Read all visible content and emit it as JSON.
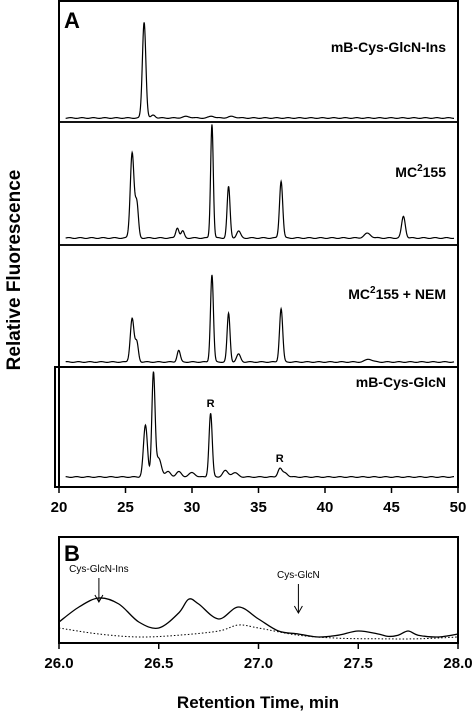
{
  "figure": {
    "y_axis_label": "Relative Fluorescence",
    "x_axis_label": "Retention Time, min"
  },
  "chart_data": [
    {
      "type": "line",
      "panel_label": "A",
      "xlim": [
        20,
        50
      ],
      "xticks": [
        20,
        25,
        30,
        35,
        40,
        45,
        50
      ],
      "tick_labels": [
        "20",
        "25",
        "30",
        "35",
        "40",
        "45",
        "50"
      ],
      "traces": [
        {
          "title_main": "mB-Cys-GlcN-Ins",
          "title_sup": "",
          "title_tail": "",
          "peaks": [
            [
              26.4,
              1.0,
              0.13
            ],
            [
              27.1,
              0.03,
              0.15
            ],
            [
              29.6,
              0.015,
              0.3
            ],
            [
              31.5,
              0.02,
              0.2
            ],
            [
              33.0,
              0.015,
              0.3
            ]
          ],
          "markers": []
        },
        {
          "title_main": "MC",
          "title_sup": "2",
          "title_tail": "155",
          "peaks": [
            [
              25.5,
              0.75,
              0.14
            ],
            [
              25.85,
              0.3,
              0.12
            ],
            [
              28.9,
              0.09,
              0.12
            ],
            [
              29.3,
              0.06,
              0.12
            ],
            [
              31.5,
              1.0,
              0.1
            ],
            [
              32.75,
              0.45,
              0.11
            ],
            [
              33.5,
              0.06,
              0.15
            ],
            [
              36.7,
              0.5,
              0.12
            ],
            [
              43.2,
              0.04,
              0.25
            ],
            [
              45.9,
              0.19,
              0.14
            ]
          ],
          "markers": []
        },
        {
          "title_main": "MC",
          "title_sup": "2",
          "title_tail": "155 + NEM",
          "peaks": [
            [
              25.5,
              0.45,
              0.14
            ],
            [
              25.85,
              0.2,
              0.12
            ],
            [
              29.0,
              0.12,
              0.12
            ],
            [
              31.5,
              0.9,
              0.11
            ],
            [
              32.75,
              0.5,
              0.11
            ],
            [
              33.5,
              0.08,
              0.15
            ],
            [
              36.7,
              0.55,
              0.12
            ],
            [
              43.3,
              0.03,
              0.25
            ]
          ],
          "markers": []
        },
        {
          "title_main": "mB-Cys-GlcN",
          "title_sup": "",
          "title_tail": "",
          "peaks": [
            [
              26.5,
              0.5,
              0.15
            ],
            [
              27.1,
              1.0,
              0.12
            ],
            [
              27.5,
              0.18,
              0.2
            ],
            [
              28.2,
              0.05,
              0.2
            ],
            [
              29.0,
              0.05,
              0.2
            ],
            [
              30.0,
              0.04,
              0.25
            ],
            [
              31.4,
              0.62,
              0.12
            ],
            [
              32.5,
              0.06,
              0.2
            ],
            [
              33.2,
              0.04,
              0.25
            ],
            [
              36.6,
              0.08,
              0.15
            ],
            [
              37.0,
              0.04,
              0.2
            ]
          ],
          "markers": [
            {
              "label": "R",
              "x": 31.4
            },
            {
              "label": "R",
              "x": 36.6
            }
          ]
        }
      ]
    },
    {
      "type": "line",
      "panel_label": "B",
      "xlim": [
        26.0,
        28.0
      ],
      "xticks": [
        26.0,
        26.5,
        27.0,
        27.5,
        28.0
      ],
      "tick_labels": [
        "26.0",
        "26.5",
        "27.0",
        "27.5",
        "28.0"
      ],
      "series": [
        {
          "style": "solid",
          "x": [
            26.0,
            26.1,
            26.2,
            26.3,
            26.4,
            26.5,
            26.6,
            26.65,
            26.7,
            26.8,
            26.9,
            27.0,
            27.1,
            27.2,
            27.3,
            27.4,
            27.5,
            27.6,
            27.65,
            27.7,
            27.75,
            27.8,
            27.9,
            28.0
          ],
          "y": [
            0.3,
            0.55,
            0.7,
            0.6,
            0.3,
            0.2,
            0.45,
            0.68,
            0.6,
            0.35,
            0.55,
            0.35,
            0.15,
            0.1,
            0.05,
            0.08,
            0.15,
            0.1,
            0.06,
            0.08,
            0.15,
            0.08,
            0.05,
            0.1
          ]
        },
        {
          "style": "dotted",
          "x": [
            26.0,
            26.2,
            26.4,
            26.6,
            26.8,
            26.9,
            27.0,
            27.2,
            27.4,
            27.6,
            27.8,
            28.0
          ],
          "y": [
            0.2,
            0.1,
            0.05,
            0.08,
            0.15,
            0.25,
            0.2,
            0.08,
            0.03,
            0.02,
            0.02,
            0.05
          ]
        }
      ],
      "annotations": [
        {
          "label": "Cys-GlcN-Ins",
          "x": 26.2
        },
        {
          "label": "Cys-GlcN",
          "x": 27.2
        }
      ]
    }
  ]
}
